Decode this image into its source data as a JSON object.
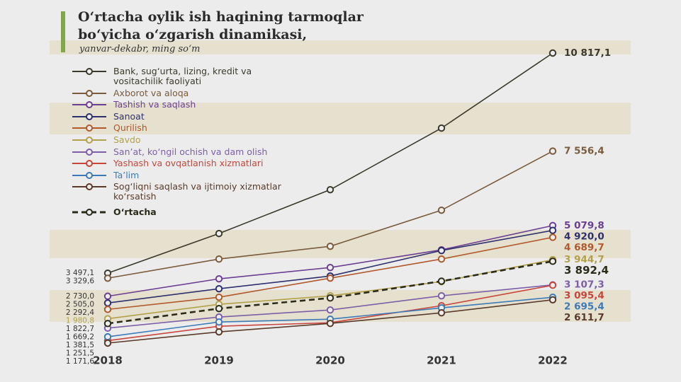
{
  "chart_data": {
    "type": "line",
    "title": "O‘rtacha oylik ish haqining tarmoqlar bo‘yicha o‘zgarish dinamikasi,",
    "subtitle": "yanvar-dekabr, ming so‘m",
    "categories": [
      "2018",
      "2019",
      "2020",
      "2021",
      "2022"
    ],
    "series": [
      {
        "name": "Bank, sug‘urta, lizing, kredit va vositachilik faoliyati",
        "color": "#3b3a2c",
        "values": [
          3497.1,
          4815,
          6273,
          8321,
          10817.1
        ],
        "value_labels": [
          "3 497,1",
          null,
          null,
          null,
          "10 817,1"
        ]
      },
      {
        "name": "Axborot va aloqa",
        "color": "#7a5b3c",
        "values": [
          3329.6,
          3967,
          4391,
          5591,
          7556.4
        ],
        "value_labels": [
          "3 329,6",
          null,
          null,
          null,
          "7 556,4"
        ]
      },
      {
        "name": "Tashish va saqlash",
        "color": "#6b3f93",
        "values": [
          2730.0,
          3309,
          3685,
          4273,
          5079.8
        ],
        "value_labels": [
          "2 730,0",
          null,
          null,
          null,
          "5 079,8"
        ]
      },
      {
        "name": "Sanoat",
        "color": "#2e306e",
        "values": [
          2505.0,
          2979,
          3403,
          4250,
          4920.0
        ],
        "value_labels": [
          "2 505,0",
          null,
          null,
          null,
          "4 920,0"
        ]
      },
      {
        "name": "Qurilish",
        "color": "#b0592b",
        "values": [
          2292.4,
          2697,
          3332,
          3967,
          4689.7
        ],
        "value_labels": [
          "2 292,4",
          null,
          null,
          null,
          "4 689,7"
        ]
      },
      {
        "name": "Savdo",
        "color": "#b3a14a",
        "values": [
          1980.8,
          2462,
          2744,
          3215,
          3944.7
        ],
        "value_labels": [
          "1 980,8",
          null,
          null,
          null,
          "3 944,7"
        ]
      },
      {
        "name": "San’at, ko‘ngil ochish va dam olish",
        "color": "#7d5fa8",
        "values": [
          1669.2,
          2038,
          2273,
          2744,
          3107.3
        ],
        "value_labels": [
          "1 669,2",
          null,
          null,
          null,
          "3 107,3"
        ]
      },
      {
        "name": "Yashash va ovqatlanish xizmatlari",
        "color": "#c8463c",
        "values": [
          1251.5,
          1732,
          1850,
          2415,
          3095.4
        ],
        "value_labels": [
          "1 251,5",
          null,
          null,
          null,
          "3 095,4"
        ]
      },
      {
        "name": "Ta’lim",
        "color": "#3d7ab8",
        "values": [
          1381.5,
          1873,
          1968,
          2344,
          2695.4
        ],
        "value_labels": [
          "1 381,5",
          null,
          null,
          null,
          "2 695,4"
        ]
      },
      {
        "name": "Sog‘liqni saqlash va ijtimoiy xizmatlar ko‘rsatish",
        "color": "#5a3b2b",
        "values": [
          1171.6,
          1544,
          1826,
          2179,
          2611.7
        ],
        "value_labels": [
          "1 171,6",
          null,
          null,
          null,
          "2 611,7"
        ]
      },
      {
        "name": "O‘rtacha",
        "color": "#2b2b1a",
        "dashed": true,
        "values": [
          1822.7,
          2320,
          2673,
          3230,
          3892.4
        ],
        "value_labels": [
          "1 822,7",
          null,
          null,
          null,
          "3 892,4"
        ]
      }
    ]
  }
}
